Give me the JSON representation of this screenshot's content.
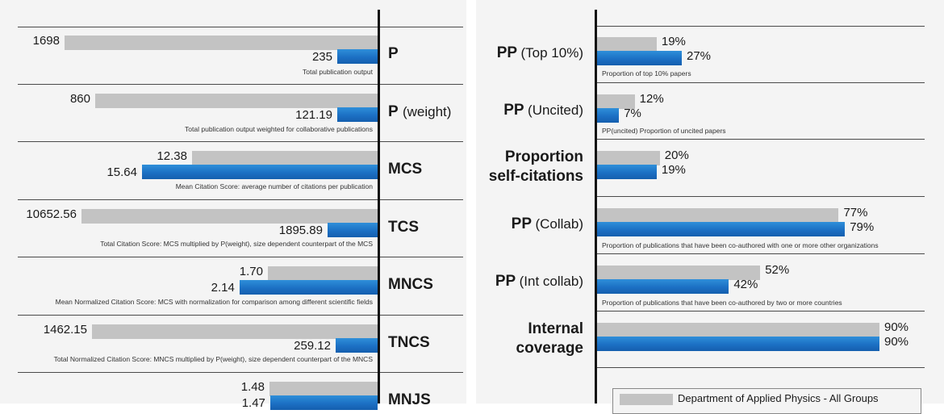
{
  "chart_data": [
    {
      "type": "bar",
      "orientation": "horizontal",
      "series_colors": {
        "group": "#c3c3c3",
        "unit": "#1c70c4"
      },
      "metrics": [
        {
          "id": "p",
          "name": "P",
          "sub": "",
          "group_value": 1698,
          "unit_value": 235,
          "group_label": "1698",
          "unit_label": "235",
          "description": "Total publication output"
        },
        {
          "id": "pw",
          "name": "P",
          "sub": "(weight)",
          "group_value": 860,
          "unit_value": 121.19,
          "group_label": "860",
          "unit_label": "121.19",
          "description": "Total publication output weighted for collaborative publications"
        },
        {
          "id": "mcs",
          "name": "MCS",
          "sub": "",
          "group_value": 12.38,
          "unit_value": 15.64,
          "group_label": "12.38",
          "unit_label": "15.64",
          "description": "Mean Citation Score: average number of citations per publication"
        },
        {
          "id": "tcs",
          "name": "TCS",
          "sub": "",
          "group_value": 10652.56,
          "unit_value": 1895.89,
          "group_label": "10652.56",
          "unit_label": "1895.89",
          "description": "Total Citation Score: MCS multiplied by P(weight), size dependent counterpart of the MCS"
        },
        {
          "id": "mncs",
          "name": "MNCS",
          "sub": "",
          "group_value": 1.7,
          "unit_value": 2.14,
          "group_label": "1.70",
          "unit_label": "2.14",
          "description": "Mean Normalized Citation Score: MCS with normalization for comparison among different scientific fields"
        },
        {
          "id": "tncs",
          "name": "TNCS",
          "sub": "",
          "group_value": 1462.15,
          "unit_value": 259.12,
          "group_label": "1462.15",
          "unit_label": "259.12",
          "description": "Total Normalized Citation Score: MNCS multiplied by P(weight), size dependent counterpart of the MNCS"
        },
        {
          "id": "mnjs",
          "name": "MNJS",
          "sub": "",
          "group_value": 1.48,
          "unit_value": 1.47,
          "group_label": "1.48",
          "unit_label": "1.47",
          "description": ""
        }
      ]
    },
    {
      "type": "bar",
      "orientation": "horizontal",
      "unit": "%",
      "xlim": [
        0,
        100
      ],
      "series_colors": {
        "group": "#c3c3c3",
        "unit": "#1c70c4"
      },
      "metrics": [
        {
          "id": "pptop",
          "label_main": "PP",
          "label_sub": "(Top 10%)",
          "group_value": 19,
          "unit_value": 27,
          "group_label": "19%",
          "unit_label": "27%",
          "description": "Proportion of top 10% papers"
        },
        {
          "id": "ppuncited",
          "label_main": "PP",
          "label_sub": "(Uncited)",
          "group_value": 12,
          "unit_value": 7,
          "group_label": "12%",
          "unit_label": "7%",
          "description": "PP(uncited) Proportion of uncited papers"
        },
        {
          "id": "selfcit",
          "label_line1": "Proportion",
          "label_line2": "self-citations",
          "group_value": 20,
          "unit_value": 19,
          "group_label": "20%",
          "unit_label": "19%",
          "description": ""
        },
        {
          "id": "collab",
          "label_main": "PP",
          "label_sub": "(Collab)",
          "group_value": 77,
          "unit_value": 79,
          "group_label": "77%",
          "unit_label": "79%",
          "description": "Proportion of publications that have been co-authored with one or more other organizations"
        },
        {
          "id": "intcollab",
          "label_main": "PP",
          "label_sub": "(Int collab)",
          "group_value": 52,
          "unit_value": 42,
          "group_label": "52%",
          "unit_label": "42%",
          "description": "Proportion of publications that have been co-authored by two or more countries"
        },
        {
          "id": "coverage",
          "label_line1": "Internal",
          "label_line2": "coverage",
          "group_value": 90,
          "unit_value": 90,
          "group_label": "90%",
          "unit_label": "90%",
          "description": ""
        }
      ]
    }
  ],
  "legend": {
    "group_label": "Department of Applied Physics - All Groups"
  }
}
